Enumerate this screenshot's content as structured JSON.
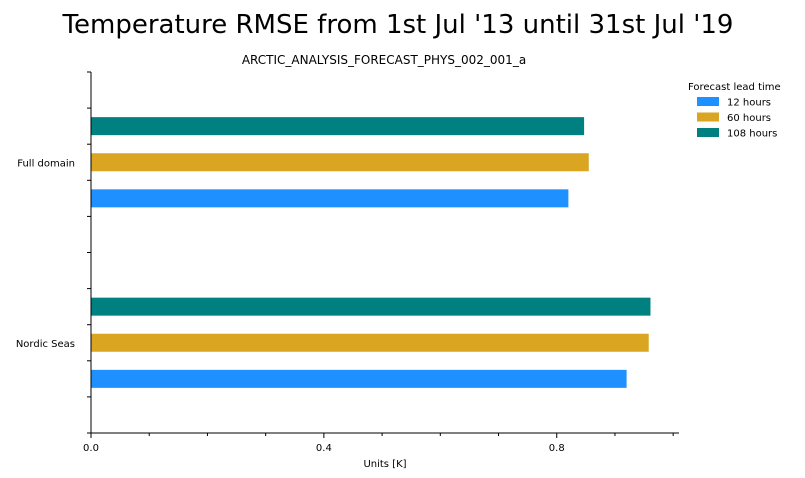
{
  "chart_data": {
    "type": "bar",
    "orientation": "horizontal",
    "title": "Temperature RMSE from 1st Jul '13 until 31st Jul '19",
    "subtitle": "ARCTIC_ANALYSIS_FORECAST_PHYS_002_001_a",
    "xlabel": "Units [K]",
    "ylabel": "",
    "xlim": [
      0,
      1.01
    ],
    "xticks": [
      0.0,
      0.4,
      0.8
    ],
    "xtick_labels": [
      "0.0",
      "0.4",
      "0.8"
    ],
    "grid": false,
    "legend_position": "top-right",
    "legend_title": "Forecast lead time",
    "categories": [
      "Full domain",
      "Nordic Seas"
    ],
    "series": [
      {
        "name": "12 hours",
        "color": "#1e90ff",
        "values": [
          0.82,
          0.92
        ]
      },
      {
        "name": "60 hours",
        "color": "#daa520",
        "values": [
          0.855,
          0.958
        ]
      },
      {
        "name": "108 hours",
        "color": "#008080",
        "values": [
          0.847,
          0.961
        ]
      }
    ]
  }
}
